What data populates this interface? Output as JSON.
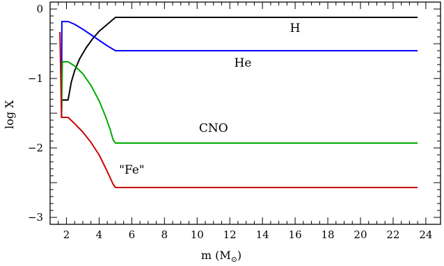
{
  "chart_data": {
    "type": "line",
    "title": "",
    "xlabel": "m (M",
    "xlabel_sub": "⊙",
    "xlabel_close": ")",
    "ylabel": "log X",
    "xlim": [
      1,
      24.9
    ],
    "ylim": [
      -3.1,
      0.1
    ],
    "xticks": [
      2,
      4,
      6,
      8,
      10,
      12,
      14,
      16,
      18,
      20,
      22,
      24
    ],
    "xtick_labels": [
      "2",
      "4",
      "6",
      "8",
      "10",
      "12",
      "14",
      "16",
      "18",
      "20",
      "22",
      "24"
    ],
    "yticks": [
      0,
      -1,
      -2,
      -3
    ],
    "ytick_labels": [
      "0",
      "−1",
      "−2",
      "−3"
    ],
    "grid": false,
    "series": [
      {
        "name": "H",
        "color": "#000000",
        "label_at": [
          16.0,
          -0.33
        ],
        "points": [
          [
            1.7,
            -1.56
          ],
          [
            1.72,
            -1.31
          ],
          [
            2.1,
            -1.31
          ],
          [
            2.3,
            -1.05
          ],
          [
            2.5,
            -0.89
          ],
          [
            2.8,
            -0.72
          ],
          [
            3.2,
            -0.56
          ],
          [
            3.6,
            -0.43
          ],
          [
            4.0,
            -0.32
          ],
          [
            4.5,
            -0.22
          ],
          [
            5.0,
            -0.12
          ],
          [
            23.5,
            -0.12
          ]
        ]
      },
      {
        "name": "He",
        "color": "#0000ff",
        "label_at": [
          12.8,
          -0.83
        ],
        "points": [
          [
            1.7,
            -1.5
          ],
          [
            1.72,
            -0.18
          ],
          [
            2.1,
            -0.18
          ],
          [
            2.5,
            -0.22
          ],
          [
            3.0,
            -0.29
          ],
          [
            3.5,
            -0.37
          ],
          [
            4.0,
            -0.45
          ],
          [
            4.5,
            -0.53
          ],
          [
            5.0,
            -0.6
          ],
          [
            23.5,
            -0.6
          ]
        ]
      },
      {
        "name": "CNO",
        "color": "#00aa00",
        "label_at": [
          11.0,
          -1.77
        ],
        "points": [
          [
            1.7,
            -1.56
          ],
          [
            1.75,
            -0.76
          ],
          [
            2.1,
            -0.76
          ],
          [
            2.5,
            -0.82
          ],
          [
            3.0,
            -0.93
          ],
          [
            3.5,
            -1.1
          ],
          [
            4.0,
            -1.32
          ],
          [
            4.4,
            -1.55
          ],
          [
            4.7,
            -1.75
          ],
          [
            4.85,
            -1.88
          ],
          [
            5.0,
            -1.93
          ],
          [
            23.5,
            -1.93
          ]
        ]
      },
      {
        "name": "\"Fe\"",
        "color": "#cc0000",
        "label_at": [
          6.0,
          -2.37
        ],
        "points": [
          [
            1.6,
            -0.33
          ],
          [
            1.7,
            -1.56
          ],
          [
            2.1,
            -1.56
          ],
          [
            2.5,
            -1.65
          ],
          [
            3.0,
            -1.77
          ],
          [
            3.5,
            -1.92
          ],
          [
            4.0,
            -2.1
          ],
          [
            4.4,
            -2.29
          ],
          [
            4.7,
            -2.44
          ],
          [
            4.85,
            -2.52
          ],
          [
            5.0,
            -2.57
          ],
          [
            23.5,
            -2.57
          ]
        ]
      }
    ]
  }
}
